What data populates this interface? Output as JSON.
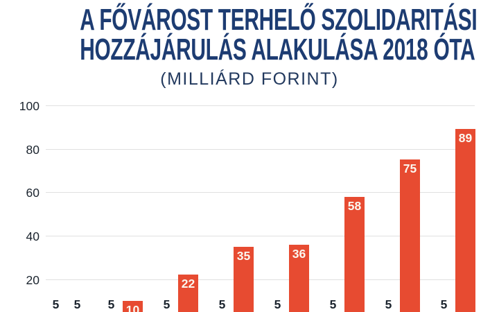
{
  "header": {
    "title_line1": "A FŐVÁROST TERHELŐ SZOLIDARITÁSI",
    "title_line2": "HOZZÁJÁRULÁS ALAKULÁSA 2018 ÓTA",
    "subtitle": "(MILLIÁRD FORINT)"
  },
  "colors": {
    "title": "#1d3c72",
    "subtitle": "#22395e",
    "bar_red": "#e74b31",
    "bar_navy": "#1d3d73",
    "grid": "#e0e0e0",
    "tick_label": "#1b242e",
    "bar_label_dark": "#1b242e",
    "bar_label_light": "#fbf6ee"
  },
  "chart_data": {
    "type": "bar",
    "title": "A FŐVÁROST TERHELŐ SZOLIDARITÁSI HOZZÁJÁRULÁS ALAKULÁSA 2018 ÓTA",
    "subtitle": "(MILLIÁRD FORINT)",
    "n_groups": 8,
    "series": [
      {
        "name": "left-short-bars",
        "color_key": "bar_navy",
        "values": [
          5,
          5,
          5,
          5,
          5,
          5,
          5,
          5
        ]
      },
      {
        "name": "right-red-bars",
        "color_key": "bar_red",
        "values": [
          5,
          10,
          22,
          35,
          36,
          58,
          75,
          89
        ]
      }
    ],
    "yticks": [
      100,
      80,
      60,
      40,
      20
    ],
    "ylim": [
      0,
      100
    ],
    "grid": true,
    "legend": false,
    "x_axis_cropped": true,
    "value_labels_shown": true
  }
}
